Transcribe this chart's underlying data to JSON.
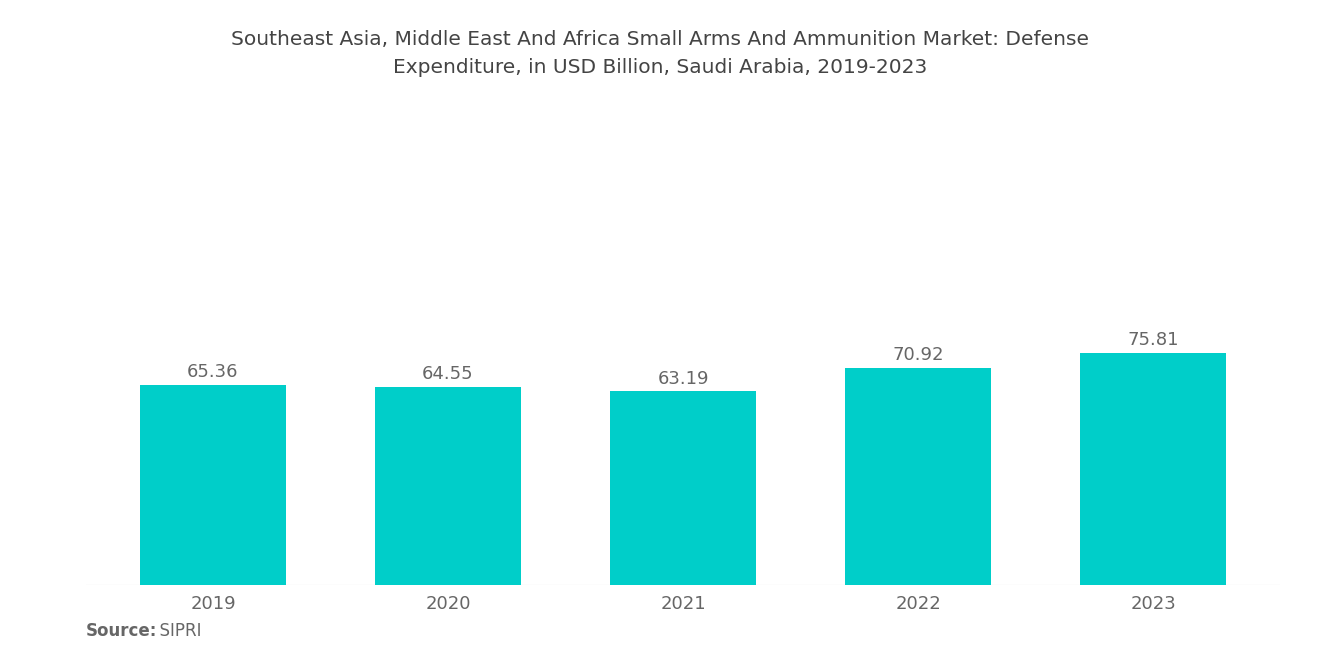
{
  "title": "Southeast Asia, Middle East And Africa Small Arms And Ammunition Market: Defense\nExpenditure, in USD Billion, Saudi Arabia, 2019-2023",
  "categories": [
    "2019",
    "2020",
    "2021",
    "2022",
    "2023"
  ],
  "values": [
    65.36,
    64.55,
    63.19,
    70.92,
    75.81
  ],
  "bar_color": "#00CEC9",
  "background_color": "#ffffff",
  "title_fontsize": 14.5,
  "label_fontsize": 13,
  "tick_fontsize": 13,
  "source_bold": "Source:",
  "source_normal": "  SIPRI",
  "source_fontsize": 12,
  "ylim": [
    0,
    130
  ],
  "bar_width": 0.62,
  "title_color": "#444444",
  "tick_color": "#666666",
  "source_color": "#666666"
}
